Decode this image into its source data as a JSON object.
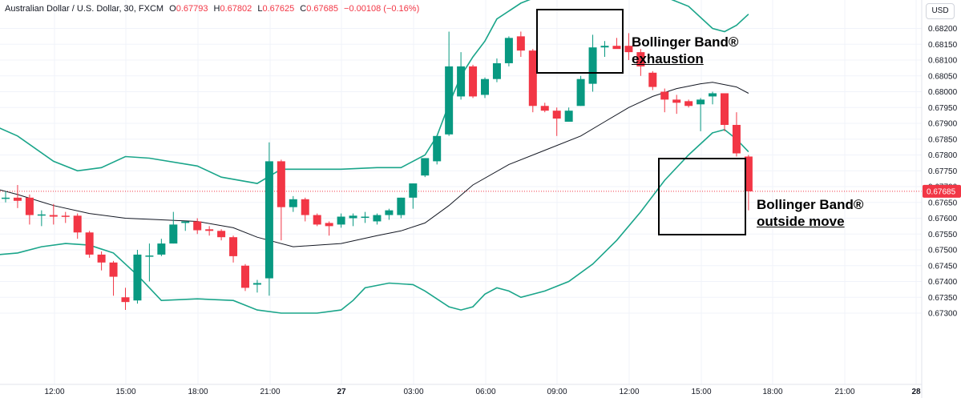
{
  "header": {
    "symbol": "Australian Dollar / U.S. Dollar, 30, FXCM",
    "o_label": "O",
    "o_value": "0.67793",
    "h_label": "H",
    "h_value": "0.67802",
    "l_label": "L",
    "l_value": "0.67625",
    "c_label": "C",
    "c_value": "0.67685",
    "change": "−0.00108 (−0.16%)"
  },
  "currency_label": "USD",
  "current_price_label": "0.67685",
  "annotations": {
    "exhaustion": {
      "line1": "Bollinger Band®",
      "line2": "exhaustion"
    },
    "outside": {
      "line1": "Bollinger Band®",
      "line2": "outside move"
    }
  },
  "colors": {
    "up": "#089981",
    "down": "#f23645",
    "band": "#1aa58a",
    "middle": "#131722",
    "axis_text": "#131722",
    "grid": "#f0f3fa",
    "price_line": "#f23645",
    "box": "#000000"
  },
  "chart_data": {
    "type": "candlestick",
    "title": "Australian Dollar / U.S. Dollar, 30, FXCM",
    "ylim": [
      0.6729,
      0.6824
    ],
    "y_ticks": [
      "0.68200",
      "0.68150",
      "0.68100",
      "0.68050",
      "0.68000",
      "0.67950",
      "0.67900",
      "0.67850",
      "0.67800",
      "0.67750",
      "0.67700",
      "0.67650",
      "0.67600",
      "0.67550",
      "0.67500",
      "0.67450",
      "0.67400",
      "0.67350",
      "0.67300"
    ],
    "x_ticks": [
      "12:00",
      "15:00",
      "18:00",
      "21:00",
      "27",
      "03:00",
      "06:00",
      "09:00",
      "12:00",
      "15:00",
      "18:00",
      "21:00",
      "28"
    ],
    "current_price": 0.67685,
    "candles": [
      {
        "o": 0.67665,
        "h": 0.67685,
        "l": 0.6765,
        "c": 0.67665
      },
      {
        "o": 0.67665,
        "h": 0.67705,
        "l": 0.67632,
        "c": 0.67655
      },
      {
        "o": 0.67665,
        "h": 0.67675,
        "l": 0.6758,
        "c": 0.6761
      },
      {
        "o": 0.6761,
        "h": 0.67625,
        "l": 0.67575,
        "c": 0.67612
      },
      {
        "o": 0.6761,
        "h": 0.67645,
        "l": 0.6758,
        "c": 0.67605
      },
      {
        "o": 0.67608,
        "h": 0.6762,
        "l": 0.67585,
        "c": 0.67605
      },
      {
        "o": 0.67608,
        "h": 0.67615,
        "l": 0.67535,
        "c": 0.67555
      },
      {
        "o": 0.67555,
        "h": 0.6756,
        "l": 0.67475,
        "c": 0.67485
      },
      {
        "o": 0.67485,
        "h": 0.67495,
        "l": 0.67435,
        "c": 0.6746
      },
      {
        "o": 0.6746,
        "h": 0.67465,
        "l": 0.67355,
        "c": 0.67415
      },
      {
        "o": 0.6735,
        "h": 0.6738,
        "l": 0.6731,
        "c": 0.67335
      },
      {
        "o": 0.6734,
        "h": 0.675,
        "l": 0.6733,
        "c": 0.67485
      },
      {
        "o": 0.6748,
        "h": 0.6752,
        "l": 0.674,
        "c": 0.67482
      },
      {
        "o": 0.67485,
        "h": 0.67535,
        "l": 0.6748,
        "c": 0.6752
      },
      {
        "o": 0.6752,
        "h": 0.6762,
        "l": 0.6752,
        "c": 0.6758
      },
      {
        "o": 0.67585,
        "h": 0.6759,
        "l": 0.6756,
        "c": 0.6759
      },
      {
        "o": 0.6759,
        "h": 0.676,
        "l": 0.6755,
        "c": 0.67562
      },
      {
        "o": 0.67565,
        "h": 0.67575,
        "l": 0.67545,
        "c": 0.6756
      },
      {
        "o": 0.6756,
        "h": 0.67565,
        "l": 0.6753,
        "c": 0.6754
      },
      {
        "o": 0.6754,
        "h": 0.67545,
        "l": 0.6746,
        "c": 0.6748
      },
      {
        "o": 0.6745,
        "h": 0.67455,
        "l": 0.6737,
        "c": 0.6738
      },
      {
        "o": 0.6739,
        "h": 0.67405,
        "l": 0.67365,
        "c": 0.67395
      },
      {
        "o": 0.6741,
        "h": 0.6784,
        "l": 0.67355,
        "c": 0.6778
      },
      {
        "o": 0.6778,
        "h": 0.67785,
        "l": 0.6753,
        "c": 0.67635
      },
      {
        "o": 0.67635,
        "h": 0.6767,
        "l": 0.6762,
        "c": 0.6766
      },
      {
        "o": 0.6766,
        "h": 0.67665,
        "l": 0.6759,
        "c": 0.6761
      },
      {
        "o": 0.6761,
        "h": 0.67615,
        "l": 0.67575,
        "c": 0.6758
      },
      {
        "o": 0.67585,
        "h": 0.6759,
        "l": 0.67545,
        "c": 0.67575
      },
      {
        "o": 0.6758,
        "h": 0.67615,
        "l": 0.6757,
        "c": 0.67605
      },
      {
        "o": 0.676,
        "h": 0.67615,
        "l": 0.67575,
        "c": 0.67608
      },
      {
        "o": 0.67605,
        "h": 0.6762,
        "l": 0.67585,
        "c": 0.67605
      },
      {
        "o": 0.6759,
        "h": 0.67615,
        "l": 0.6758,
        "c": 0.6761
      },
      {
        "o": 0.6761,
        "h": 0.6763,
        "l": 0.67595,
        "c": 0.67625
      },
      {
        "o": 0.6761,
        "h": 0.67665,
        "l": 0.676,
        "c": 0.67665
      },
      {
        "o": 0.67665,
        "h": 0.6771,
        "l": 0.6763,
        "c": 0.6771
      },
      {
        "o": 0.67735,
        "h": 0.6779,
        "l": 0.6773,
        "c": 0.6779
      },
      {
        "o": 0.6778,
        "h": 0.6786,
        "l": 0.6777,
        "c": 0.6786
      },
      {
        "o": 0.67865,
        "h": 0.6819,
        "l": 0.6786,
        "c": 0.6808
      },
      {
        "o": 0.67985,
        "h": 0.68125,
        "l": 0.67975,
        "c": 0.6808
      },
      {
        "o": 0.6808,
        "h": 0.68085,
        "l": 0.6798,
        "c": 0.67985
      },
      {
        "o": 0.6799,
        "h": 0.68045,
        "l": 0.6798,
        "c": 0.6804
      },
      {
        "o": 0.6804,
        "h": 0.68105,
        "l": 0.6803,
        "c": 0.6809
      },
      {
        "o": 0.6809,
        "h": 0.68175,
        "l": 0.6808,
        "c": 0.6817
      },
      {
        "o": 0.68175,
        "h": 0.6819,
        "l": 0.6811,
        "c": 0.6813
      },
      {
        "o": 0.6813,
        "h": 0.68135,
        "l": 0.67935,
        "c": 0.67955
      },
      {
        "o": 0.67955,
        "h": 0.67965,
        "l": 0.67935,
        "c": 0.6794
      },
      {
        "o": 0.6794,
        "h": 0.6795,
        "l": 0.6786,
        "c": 0.67915
      },
      {
        "o": 0.67905,
        "h": 0.6795,
        "l": 0.67905,
        "c": 0.6794
      },
      {
        "o": 0.67955,
        "h": 0.6805,
        "l": 0.67955,
        "c": 0.6804
      },
      {
        "o": 0.68025,
        "h": 0.6818,
        "l": 0.68,
        "c": 0.6814
      },
      {
        "o": 0.6814,
        "h": 0.6816,
        "l": 0.6811,
        "c": 0.68145
      },
      {
        "o": 0.68145,
        "h": 0.6817,
        "l": 0.6814,
        "c": 0.68135
      },
      {
        "o": 0.68145,
        "h": 0.68185,
        "l": 0.681,
        "c": 0.68125
      },
      {
        "o": 0.68125,
        "h": 0.68135,
        "l": 0.6805,
        "c": 0.6808
      },
      {
        "o": 0.6806,
        "h": 0.68065,
        "l": 0.68005,
        "c": 0.68015
      },
      {
        "o": 0.68,
        "h": 0.6801,
        "l": 0.67935,
        "c": 0.67975
      },
      {
        "o": 0.67975,
        "h": 0.6799,
        "l": 0.6793,
        "c": 0.67965
      },
      {
        "o": 0.6797,
        "h": 0.67975,
        "l": 0.6795,
        "c": 0.67955
      },
      {
        "o": 0.6796,
        "h": 0.6798,
        "l": 0.67875,
        "c": 0.67975
      },
      {
        "o": 0.67985,
        "h": 0.68,
        "l": 0.6796,
        "c": 0.67995
      },
      {
        "o": 0.67995,
        "h": 0.67995,
        "l": 0.67875,
        "c": 0.67895
      },
      {
        "o": 0.67895,
        "h": 0.67935,
        "l": 0.67795,
        "c": 0.67805
      },
      {
        "o": 0.67795,
        "h": 0.678,
        "l": 0.67625,
        "c": 0.67685
      }
    ],
    "upper_band": [
      [
        -2,
        0.6791
      ],
      [
        1,
        0.6786
      ],
      [
        4,
        0.6778
      ],
      [
        6,
        0.6775
      ],
      [
        8,
        0.6776
      ],
      [
        10,
        0.67795
      ],
      [
        12,
        0.6779
      ],
      [
        16,
        0.67765
      ],
      [
        18,
        0.6773
      ],
      [
        21,
        0.6771
      ],
      [
        23,
        0.67755
      ],
      [
        28,
        0.67755
      ],
      [
        31,
        0.6776
      ],
      [
        33,
        0.6776
      ],
      [
        34,
        0.6778
      ],
      [
        35,
        0.678
      ],
      [
        36,
        0.6786
      ],
      [
        37,
        0.6796
      ],
      [
        38,
        0.6805
      ],
      [
        39,
        0.6811
      ],
      [
        40,
        0.6816
      ],
      [
        41,
        0.6823
      ],
      [
        43,
        0.6828
      ],
      [
        45,
        0.6831
      ],
      [
        47,
        0.6833
      ],
      [
        49,
        0.6834
      ],
      [
        51,
        0.6834
      ],
      [
        53,
        0.6832
      ],
      [
        55,
        0.683
      ],
      [
        57,
        0.6827
      ],
      [
        59,
        0.682
      ],
      [
        60,
        0.6819
      ],
      [
        61,
        0.6821
      ],
      [
        62,
        0.68245
      ]
    ],
    "middle_band": [
      [
        -2,
        0.67705
      ],
      [
        1,
        0.67675
      ],
      [
        4,
        0.6764
      ],
      [
        7,
        0.67615
      ],
      [
        10,
        0.676
      ],
      [
        13,
        0.67595
      ],
      [
        16,
        0.6759
      ],
      [
        19,
        0.6757
      ],
      [
        21,
        0.6754
      ],
      [
        24,
        0.6751
      ],
      [
        28,
        0.6752
      ],
      [
        31,
        0.67545
      ],
      [
        33,
        0.6756
      ],
      [
        35,
        0.67585
      ],
      [
        37,
        0.6764
      ],
      [
        39,
        0.67705
      ],
      [
        42,
        0.6777
      ],
      [
        45,
        0.67815
      ],
      [
        48,
        0.6786
      ],
      [
        50,
        0.67905
      ],
      [
        52,
        0.6795
      ],
      [
        54,
        0.67985
      ],
      [
        56,
        0.6801
      ],
      [
        58,
        0.68025
      ],
      [
        59,
        0.6803
      ],
      [
        61,
        0.68015
      ],
      [
        62,
        0.67995
      ]
    ],
    "lower_band": [
      [
        -2,
        0.6748
      ],
      [
        1,
        0.6749
      ],
      [
        3,
        0.6751
      ],
      [
        5,
        0.6752
      ],
      [
        7,
        0.67515
      ],
      [
        9,
        0.6749
      ],
      [
        11,
        0.6742
      ],
      [
        13,
        0.6734
      ],
      [
        16,
        0.67345
      ],
      [
        19,
        0.6734
      ],
      [
        21,
        0.6731
      ],
      [
        23,
        0.673
      ],
      [
        26,
        0.673
      ],
      [
        28,
        0.6731
      ],
      [
        29,
        0.6734
      ],
      [
        30,
        0.6738
      ],
      [
        32,
        0.67395
      ],
      [
        34,
        0.6739
      ],
      [
        35,
        0.6737
      ],
      [
        37,
        0.6732
      ],
      [
        38,
        0.6731
      ],
      [
        39,
        0.6732
      ],
      [
        40,
        0.6736
      ],
      [
        41,
        0.6738
      ],
      [
        42,
        0.6737
      ],
      [
        43,
        0.6735
      ],
      [
        45,
        0.6737
      ],
      [
        47,
        0.674
      ],
      [
        49,
        0.67455
      ],
      [
        51,
        0.6753
      ],
      [
        53,
        0.6762
      ],
      [
        55,
        0.6772
      ],
      [
        57,
        0.678
      ],
      [
        59,
        0.6787
      ],
      [
        60,
        0.6788
      ],
      [
        61,
        0.6785
      ],
      [
        62,
        0.6781
      ]
    ]
  }
}
